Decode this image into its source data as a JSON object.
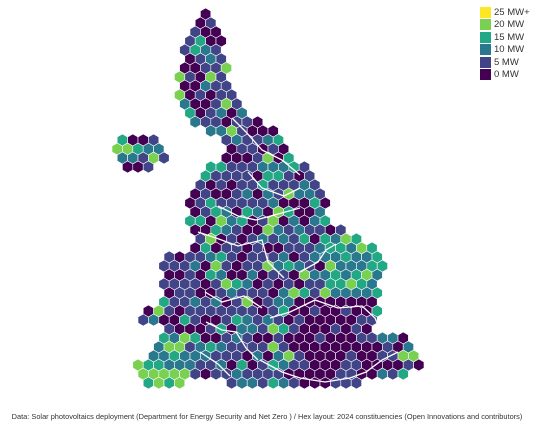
{
  "legend": {
    "items": [
      {
        "label": "25 MW+",
        "color": "#fde725"
      },
      {
        "label": "20 MW",
        "color": "#7ad151"
      },
      {
        "label": "15 MW",
        "color": "#22a884"
      },
      {
        "label": "10 MW",
        "color": "#2a788e"
      },
      {
        "label": "5 MW",
        "color": "#414487"
      },
      {
        "label": "0 MW",
        "color": "#440154"
      }
    ]
  },
  "source_text": "Data: Solar photovoltaics deployment (Department for Energy Security and Net Zero ) / Hex layout: 2024 constituencies (Open Innovations and contributors)"
}
